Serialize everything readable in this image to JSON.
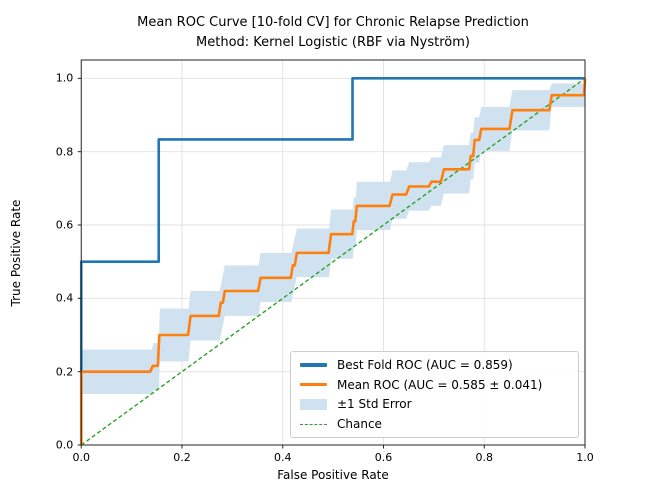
{
  "chart_data": {
    "type": "line",
    "title": "Mean ROC Curve [10-fold CV] for Chronic Relapse Prediction",
    "subtitle": "Method: Kernel Logistic (RBF via Nyström)",
    "xlabel": "False Positive Rate",
    "ylabel": "True Positive Rate",
    "xlim": [
      0,
      1.0
    ],
    "ylim": [
      0,
      1.05
    ],
    "xticks": [
      0.0,
      0.2,
      0.4,
      0.6,
      0.8,
      1.0
    ],
    "yticks": [
      0.0,
      0.2,
      0.4,
      0.6,
      0.8,
      1.0
    ],
    "grid": true,
    "grid_color": "#e0e0e0",
    "spine_color": "#262626",
    "legend_position": "lower right",
    "auc_best_fold": 0.859,
    "auc_mean": 0.585,
    "auc_mean_std": 0.041,
    "series": [
      {
        "name": "best-fold-roc",
        "label": "Best Fold ROC (AUC = 0.859)",
        "color": "#1f77b4",
        "style": "solid",
        "width": 2.6,
        "points": [
          [
            0,
            0
          ],
          [
            0,
            0.5
          ],
          [
            0.1538,
            0.5
          ],
          [
            0.1538,
            0.8333
          ],
          [
            0.5385,
            0.8333
          ],
          [
            0.5385,
            1.0
          ],
          [
            1.0,
            1.0
          ]
        ]
      },
      {
        "name": "mean-roc",
        "label": "Mean ROC (AUC = 0.585 ± 0.041)",
        "color": "#ff7f0e",
        "style": "solid",
        "width": 2.6,
        "points": [
          [
            0,
            0
          ],
          [
            0,
            0.2
          ],
          [
            0.137,
            0.2
          ],
          [
            0.142,
            0.216
          ],
          [
            0.152,
            0.216
          ],
          [
            0.155,
            0.3
          ],
          [
            0.212,
            0.3
          ],
          [
            0.217,
            0.352
          ],
          [
            0.273,
            0.352
          ],
          [
            0.277,
            0.388
          ],
          [
            0.281,
            0.388
          ],
          [
            0.285,
            0.42
          ],
          [
            0.351,
            0.42
          ],
          [
            0.356,
            0.456
          ],
          [
            0.416,
            0.456
          ],
          [
            0.42,
            0.49
          ],
          [
            0.424,
            0.49
          ],
          [
            0.428,
            0.524
          ],
          [
            0.491,
            0.524
          ],
          [
            0.496,
            0.575
          ],
          [
            0.538,
            0.575
          ],
          [
            0.541,
            0.61
          ],
          [
            0.544,
            0.61
          ],
          [
            0.547,
            0.652
          ],
          [
            0.612,
            0.652
          ],
          [
            0.618,
            0.683
          ],
          [
            0.645,
            0.683
          ],
          [
            0.651,
            0.705
          ],
          [
            0.69,
            0.705
          ],
          [
            0.695,
            0.718
          ],
          [
            0.714,
            0.718
          ],
          [
            0.72,
            0.752
          ],
          [
            0.77,
            0.752
          ],
          [
            0.773,
            0.788
          ],
          [
            0.778,
            0.788
          ],
          [
            0.781,
            0.832
          ],
          [
            0.79,
            0.832
          ],
          [
            0.794,
            0.862
          ],
          [
            0.85,
            0.862
          ],
          [
            0.856,
            0.913
          ],
          [
            0.929,
            0.913
          ],
          [
            0.934,
            0.954
          ],
          [
            0.998,
            0.954
          ],
          [
            1.0,
            1.0
          ]
        ]
      },
      {
        "name": "std-error-band",
        "label": "±1 Std Error",
        "color": "#d0e2ef",
        "style": "band",
        "flats": [
          {
            "x0": 0.0,
            "x1": 0.14,
            "lo": 0.139,
            "hi": 0.26
          },
          {
            "x0": 0.143,
            "x1": 0.154,
            "lo": 0.15,
            "hi": 0.278
          },
          {
            "x0": 0.156,
            "x1": 0.213,
            "lo": 0.228,
            "hi": 0.372
          },
          {
            "x0": 0.217,
            "x1": 0.275,
            "lo": 0.285,
            "hi": 0.42
          },
          {
            "x0": 0.285,
            "x1": 0.352,
            "lo": 0.352,
            "hi": 0.49
          },
          {
            "x0": 0.356,
            "x1": 0.417,
            "lo": 0.39,
            "hi": 0.524
          },
          {
            "x0": 0.428,
            "x1": 0.492,
            "lo": 0.458,
            "hi": 0.59
          },
          {
            "x0": 0.496,
            "x1": 0.539,
            "lo": 0.508,
            "hi": 0.642
          },
          {
            "x0": 0.541,
            "x1": 0.545,
            "lo": 0.545,
            "hi": 0.675
          },
          {
            "x0": 0.547,
            "x1": 0.613,
            "lo": 0.586,
            "hi": 0.718
          },
          {
            "x0": 0.618,
            "x1": 0.645,
            "lo": 0.617,
            "hi": 0.749
          },
          {
            "x0": 0.651,
            "x1": 0.69,
            "lo": 0.639,
            "hi": 0.771
          },
          {
            "x0": 0.695,
            "x1": 0.714,
            "lo": 0.652,
            "hi": 0.784
          },
          {
            "x0": 0.72,
            "x1": 0.77,
            "lo": 0.686,
            "hi": 0.818
          },
          {
            "x0": 0.773,
            "x1": 0.778,
            "lo": 0.724,
            "hi": 0.852
          },
          {
            "x0": 0.781,
            "x1": 0.79,
            "lo": 0.77,
            "hi": 0.894
          },
          {
            "x0": 0.794,
            "x1": 0.85,
            "lo": 0.802,
            "hi": 0.922
          },
          {
            "x0": 0.856,
            "x1": 0.929,
            "lo": 0.858,
            "hi": 0.968
          },
          {
            "x0": 0.934,
            "x1": 1.0,
            "lo": 0.922,
            "hi": 0.986
          }
        ]
      },
      {
        "name": "chance",
        "label": "Chance",
        "color": "#2ca02c",
        "style": "dashed",
        "width": 1.4,
        "points": [
          [
            0,
            0
          ],
          [
            1.0,
            1.0
          ]
        ]
      }
    ]
  }
}
